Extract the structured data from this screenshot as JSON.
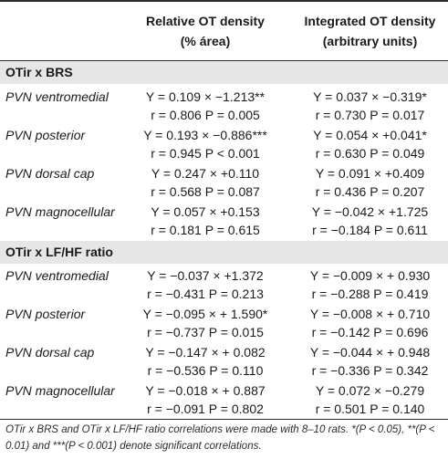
{
  "headers": {
    "col1_line1": "Relative OT density",
    "col1_line2": "(% área)",
    "col2_line1": "Integrated OT density",
    "col2_line2": "(arbitrary units)"
  },
  "sections": [
    {
      "title": "OTir x BRS",
      "rows": [
        {
          "name": "PVN ventromedial",
          "rel_eq": "Y = 0.109 × −1.213**",
          "rel_stats": "r = 0.806 P = 0.005",
          "int_eq": "Y = 0.037 × −0.319*",
          "int_stats": "r = 0.730 P = 0.017"
        },
        {
          "name": "PVN posterior",
          "rel_eq": "Y = 0.193 × −0.886***",
          "rel_stats": "r = 0.945 P < 0.001",
          "int_eq": "Y = 0.054 × +0.041*",
          "int_stats": "r = 0.630 P = 0.049"
        },
        {
          "name": "PVN dorsal cap",
          "rel_eq": "Y = 0.247 × +0.110",
          "rel_stats": "r = 0.568 P = 0.087",
          "int_eq": "Y = 0.091 × +0.409",
          "int_stats": "r = 0.436 P = 0.207"
        },
        {
          "name": "PVN magnocellular",
          "rel_eq": "Y = 0.057 × +0.153",
          "rel_stats": "r = 0.181 P = 0.615",
          "int_eq": "Y = −0.042 × +1.725",
          "int_stats": "r = −0.184 P = 0.611"
        }
      ]
    },
    {
      "title": "OTir x LF/HF ratio",
      "rows": [
        {
          "name": "PVN ventromedial",
          "rel_eq": "Y = −0.037 × +1.372",
          "rel_stats": "r = −0.431 P = 0.213",
          "int_eq": "Y = −0.009 × + 0.930",
          "int_stats": "r = −0.288 P = 0.419"
        },
        {
          "name": "PVN posterior",
          "rel_eq": "Y = −0.095 × + 1.590*",
          "rel_stats": "r = −0.737 P = 0.015",
          "int_eq": "Y = −0.008 × + 0.710",
          "int_stats": "r = −0.142 P = 0.696"
        },
        {
          "name": "PVN dorsal cap",
          "rel_eq": "Y = −0.147 × + 0.082",
          "rel_stats": "r = −0.536 P = 0.110",
          "int_eq": "Y = −0.044 × + 0.948",
          "int_stats": "r = −0.336 P = 0.342"
        },
        {
          "name": "PVN magnocellular",
          "rel_eq": "Y = −0.018 × + 0.887",
          "rel_stats": "r = −0.091 P = 0.802",
          "int_eq": "Y = 0.072 × −0.279",
          "int_stats": "r = 0.501 P = 0.140"
        }
      ]
    }
  ],
  "footnote": "OTir x BRS and OTir x LF/HF ratio correlations were made with 8–10 rats. *(P < 0.05), **(P < 0.01) and ***(P < 0.001) denote significant correlations."
}
